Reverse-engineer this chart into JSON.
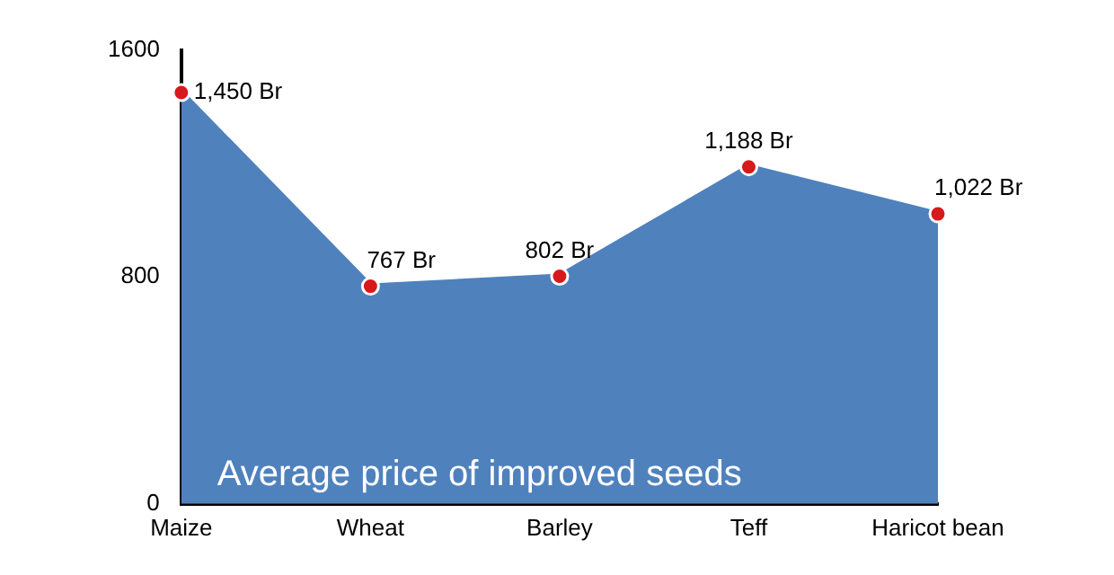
{
  "chart_data": {
    "type": "area",
    "title": "Average price of improved seeds",
    "categories": [
      "Maize",
      "Wheat",
      "Barley",
      "Teff",
      "Haricot bean"
    ],
    "series": [
      {
        "color": "#4f81bd",
        "values": [
          1450,
          767,
          802,
          1188,
          1022
        ],
        "value_labels": [
          "1,450 Br",
          "767 Br",
          "802 Br",
          "1,188 Br",
          "1,022 Br"
        ]
      }
    ],
    "ylim": [
      0,
      1600
    ],
    "yticks": [
      0,
      800,
      1600
    ],
    "grid": false,
    "legend": false,
    "marker": "circle"
  }
}
